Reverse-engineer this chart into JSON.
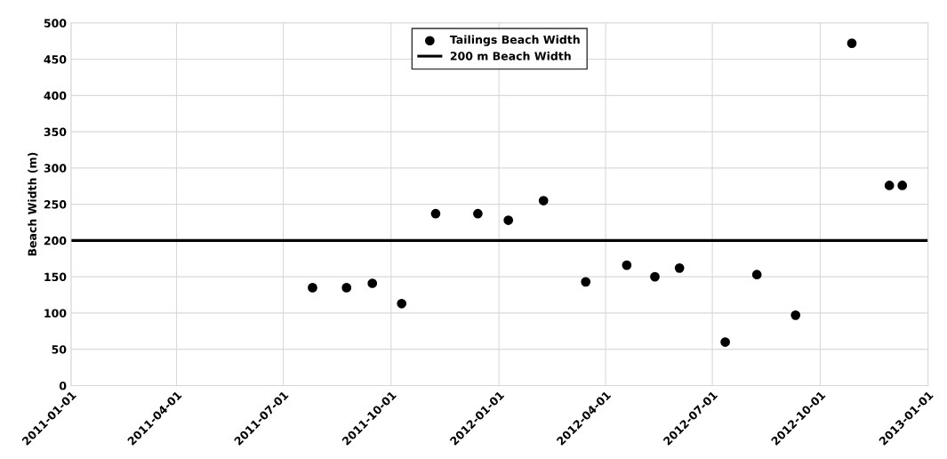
{
  "chart_data": {
    "type": "scatter",
    "ylabel": "Beach Width (m)",
    "xlim": [
      "2011-01-01",
      "2013-01-01"
    ],
    "xticks": [
      "2011-01-01",
      "2011-04-01",
      "2011-07-01",
      "2011-10-01",
      "2012-01-01",
      "2012-04-01",
      "2012-07-01",
      "2012-10-01",
      "2013-01-01"
    ],
    "ylim": [
      0,
      500
    ],
    "yticks": [
      0,
      50,
      100,
      150,
      200,
      250,
      300,
      350,
      400,
      450,
      500
    ],
    "grid": true,
    "legend": "top",
    "series": [
      {
        "name": "Tailings Beach Width",
        "marker": "circle",
        "color": "#000000",
        "x": [
          "2011-07-26",
          "2011-08-24",
          "2011-09-15",
          "2011-10-10",
          "2011-11-08",
          "2011-12-14",
          "2012-01-09",
          "2012-02-08",
          "2012-03-15",
          "2012-04-19",
          "2012-05-13",
          "2012-06-03",
          "2012-07-12",
          "2012-08-08",
          "2012-09-10",
          "2012-10-28",
          "2012-11-29",
          "2012-12-10"
        ],
        "values": [
          135,
          135,
          141,
          113,
          237,
          237,
          228,
          255,
          143,
          166,
          150,
          162,
          60,
          153,
          97,
          472,
          276,
          276
        ]
      },
      {
        "name": "200 m Beach Width",
        "type": "line",
        "marker": "none",
        "color": "#000000",
        "x": [
          "2011-01-01",
          "2013-01-01"
        ],
        "values": [
          200,
          200
        ]
      }
    ]
  }
}
